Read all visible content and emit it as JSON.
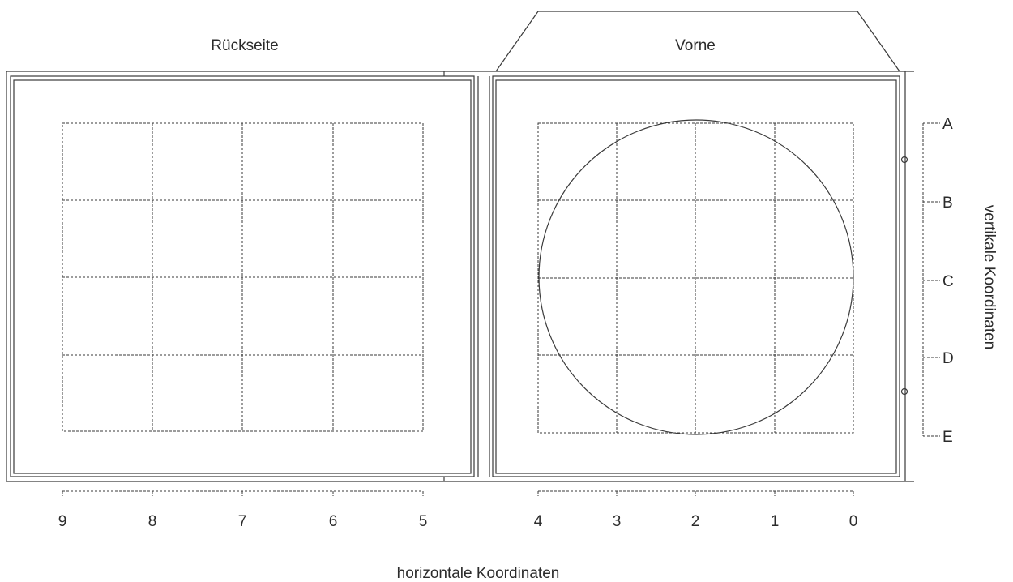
{
  "labels": {
    "back": "Rückseite",
    "front": "Vorne",
    "horizontal_axis": "horizontale Koordinaten",
    "vertical_axis": "vertikale Koordinaten"
  },
  "horizontal_ticks_back": [
    "9",
    "8",
    "7",
    "6",
    "5"
  ],
  "horizontal_ticks_front": [
    "4",
    "3",
    "2",
    "1",
    "0"
  ],
  "vertical_ticks": [
    "A",
    "B",
    "C",
    "D",
    "E"
  ]
}
